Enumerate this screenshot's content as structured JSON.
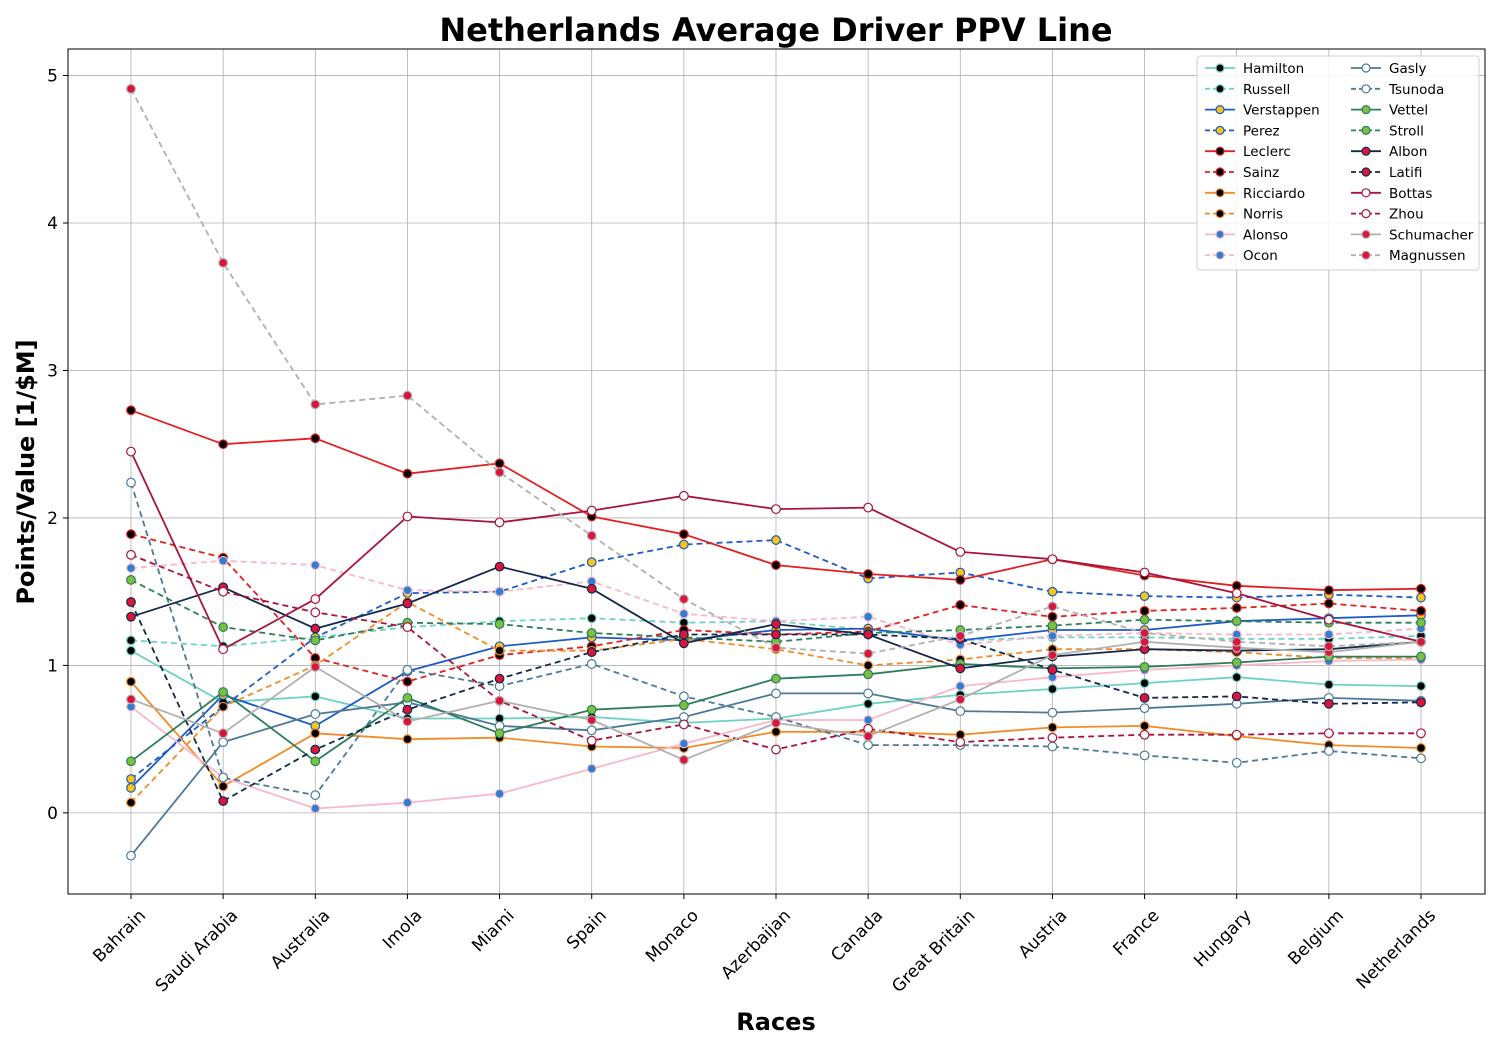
{
  "chart_data": {
    "type": "line",
    "title": "Netherlands Average Driver PPV Line",
    "xlabel": "Races",
    "ylabel": "Points/Value [1/$M]",
    "ylim": [
      -0.55,
      5.18
    ],
    "yticks": [
      0,
      1,
      2,
      3,
      4,
      5
    ],
    "grid": true,
    "legend_position": "top-right",
    "categories": [
      "Bahrain",
      "Saudi Arabia",
      "Australia",
      "Imola",
      "Miami",
      "Spain",
      "Monaco",
      "Azerbaijan",
      "Canada",
      "Great Britain",
      "Austria",
      "France",
      "Hungary",
      "Belgium",
      "Netherlands"
    ],
    "series": [
      {
        "name": "Hamilton",
        "color": "#6dd3c0",
        "dash": "solid",
        "marker_fill": "#000000",
        "values": [
          1.1,
          0.75,
          0.79,
          0.64,
          0.64,
          0.65,
          0.61,
          0.64,
          0.74,
          0.8,
          0.84,
          0.88,
          0.92,
          0.87,
          0.86
        ]
      },
      {
        "name": "Russell",
        "color": "#6dd3c0",
        "dash": "dashed",
        "marker_fill": "#000000",
        "values": [
          1.17,
          1.13,
          1.19,
          1.26,
          1.3,
          1.32,
          1.29,
          1.3,
          1.24,
          1.17,
          1.19,
          1.19,
          1.18,
          1.18,
          1.2
        ]
      },
      {
        "name": "Verstappen",
        "color": "#1e5bc6",
        "dash": "solid",
        "marker_fill": "#f5c518",
        "values": [
          0.17,
          0.8,
          0.59,
          0.96,
          1.13,
          1.19,
          1.17,
          1.24,
          1.25,
          1.17,
          1.24,
          1.24,
          1.3,
          1.32,
          1.34
        ]
      },
      {
        "name": "Perez",
        "color": "#1e5bc6",
        "dash": "dashed",
        "marker_fill": "#f5c518",
        "values": [
          0.23,
          0.72,
          1.19,
          1.49,
          1.5,
          1.7,
          1.82,
          1.85,
          1.59,
          1.63,
          1.5,
          1.47,
          1.46,
          1.48,
          1.46
        ]
      },
      {
        "name": "Leclerc",
        "color": "#e32020",
        "dash": "solid",
        "marker_fill": "#000000",
        "values": [
          2.73,
          2.5,
          2.54,
          2.3,
          2.37,
          2.01,
          1.89,
          1.68,
          1.62,
          1.58,
          1.72,
          1.61,
          1.54,
          1.51,
          1.52
        ]
      },
      {
        "name": "Sainz",
        "color": "#e32020",
        "dash": "dashed",
        "marker_fill": "#000000",
        "values": [
          1.89,
          1.73,
          1.05,
          0.89,
          1.07,
          1.13,
          1.24,
          1.21,
          1.23,
          1.41,
          1.33,
          1.37,
          1.39,
          1.42,
          1.37
        ]
      },
      {
        "name": "Ricciardo",
        "color": "#f28c28",
        "dash": "solid",
        "marker_fill": "#000000",
        "values": [
          0.89,
          0.18,
          0.54,
          0.5,
          0.51,
          0.45,
          0.44,
          0.55,
          0.55,
          0.53,
          0.58,
          0.59,
          0.52,
          0.46,
          0.44
        ]
      },
      {
        "name": "Norris",
        "color": "#f28c28",
        "dash": "dashed",
        "marker_fill": "#000000",
        "values": [
          0.07,
          0.72,
          1.0,
          1.43,
          1.1,
          1.1,
          1.18,
          1.11,
          1.0,
          1.04,
          1.11,
          1.11,
          1.09,
          1.05,
          1.05
        ]
      },
      {
        "name": "Alonso",
        "color": "#f9b8c8",
        "dash": "solid",
        "marker_fill": "#2c7fd2",
        "values": [
          0.72,
          0.24,
          0.03,
          0.07,
          0.13,
          0.3,
          0.47,
          0.63,
          0.63,
          0.86,
          0.92,
          0.97,
          1.0,
          1.03,
          1.04
        ]
      },
      {
        "name": "Ocon",
        "color": "#f9b8c8",
        "dash": "dashed",
        "marker_fill": "#2c7fd2",
        "values": [
          1.66,
          1.71,
          1.68,
          1.51,
          1.5,
          1.57,
          1.35,
          1.3,
          1.33,
          1.14,
          1.2,
          1.22,
          1.21,
          1.21,
          1.25
        ]
      },
      {
        "name": "Gasly",
        "color": "#4d7a98",
        "dash": "solid",
        "marker_fill": "#ffffff",
        "values": [
          -0.29,
          0.48,
          0.67,
          0.75,
          0.59,
          0.56,
          0.65,
          0.81,
          0.81,
          0.69,
          0.68,
          0.71,
          0.74,
          0.78,
          0.76
        ]
      },
      {
        "name": "Tsunoda",
        "color": "#4d7a98",
        "dash": "dashed",
        "marker_fill": "#ffffff",
        "values": [
          2.24,
          0.24,
          0.12,
          0.97,
          0.86,
          1.01,
          0.79,
          0.65,
          0.46,
          0.46,
          0.45,
          0.39,
          0.34,
          0.42,
          0.37
        ]
      },
      {
        "name": "Vettel",
        "color": "#2e7d5b",
        "dash": "solid",
        "marker_fill": "#7bc043",
        "values": [
          0.35,
          0.82,
          0.35,
          0.78,
          0.54,
          0.7,
          0.73,
          0.91,
          0.94,
          1.01,
          0.98,
          0.99,
          1.02,
          1.06,
          1.06
        ]
      },
      {
        "name": "Stroll",
        "color": "#2e7d5b",
        "dash": "dashed",
        "marker_fill": "#7bc043",
        "values": [
          1.58,
          1.26,
          1.17,
          1.29,
          1.28,
          1.22,
          1.19,
          1.16,
          1.22,
          1.24,
          1.27,
          1.31,
          1.3,
          1.29,
          1.29
        ]
      },
      {
        "name": "Albon",
        "color": "#14284b",
        "dash": "solid",
        "marker_fill": "#dc143c",
        "values": [
          1.33,
          1.53,
          1.25,
          1.42,
          1.67,
          1.52,
          1.15,
          1.28,
          1.21,
          0.98,
          1.06,
          1.11,
          1.1,
          1.11,
          1.16
        ]
      },
      {
        "name": "Latifi",
        "color": "#14284b",
        "dash": "dashed",
        "marker_fill": "#dc143c",
        "values": [
          1.43,
          0.08,
          0.43,
          0.7,
          0.91,
          1.09,
          1.21,
          1.21,
          1.21,
          1.18,
          0.97,
          0.78,
          0.79,
          0.74,
          0.75
        ]
      },
      {
        "name": "Bottas",
        "color": "#a8143c",
        "dash": "solid",
        "marker_fill": "#ffffff",
        "values": [
          2.45,
          1.11,
          1.45,
          2.01,
          1.97,
          2.05,
          2.15,
          2.06,
          2.07,
          1.77,
          1.72,
          1.63,
          1.49,
          1.31,
          1.16
        ]
      },
      {
        "name": "Zhou",
        "color": "#a8143c",
        "dash": "dashed",
        "marker_fill": "#ffffff",
        "values": [
          1.75,
          1.5,
          1.36,
          1.26,
          0.76,
          0.49,
          0.6,
          0.43,
          0.57,
          0.48,
          0.51,
          0.53,
          0.53,
          0.54,
          0.54
        ]
      },
      {
        "name": "Schumacher",
        "color": "#b0b0b0",
        "dash": "solid",
        "marker_fill": "#dc143c",
        "values": [
          0.77,
          0.54,
          0.99,
          0.62,
          0.76,
          0.63,
          0.36,
          0.61,
          0.52,
          0.77,
          1.07,
          1.16,
          1.12,
          1.09,
          1.16
        ]
      },
      {
        "name": "Magnussen",
        "color": "#b0b0b0",
        "dash": "dashed",
        "marker_fill": "#dc143c",
        "values": [
          4.91,
          3.73,
          2.77,
          2.83,
          2.31,
          1.88,
          1.45,
          1.12,
          1.08,
          1.2,
          1.4,
          1.22,
          1.16,
          1.13,
          1.16
        ]
      }
    ]
  }
}
